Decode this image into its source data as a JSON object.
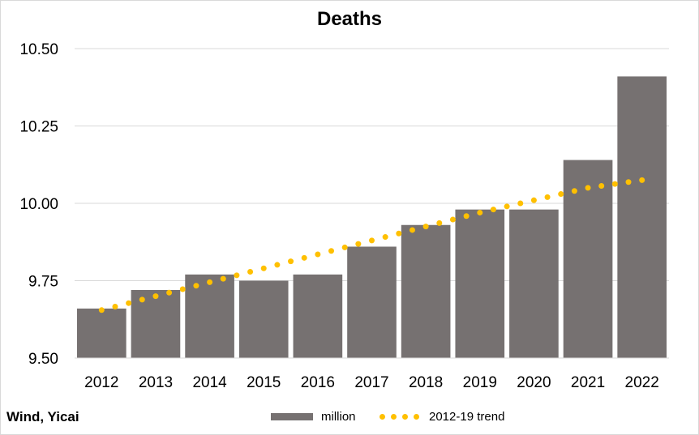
{
  "chart_data": {
    "type": "bar",
    "title": "Deaths",
    "categories": [
      "2012",
      "2013",
      "2014",
      "2015",
      "2016",
      "2017",
      "2018",
      "2019",
      "2020",
      "2021",
      "2022"
    ],
    "series": [
      {
        "name": "million",
        "type": "bar",
        "color": "#767171",
        "values": [
          9.66,
          9.72,
          9.77,
          9.75,
          9.77,
          9.86,
          9.93,
          9.98,
          9.98,
          10.14,
          10.41
        ]
      },
      {
        "name": "2012-19 trend",
        "type": "line",
        "style": "dotted",
        "color": "#ffc000",
        "values": [
          9.655,
          9.7,
          9.745,
          9.79,
          9.835,
          9.88,
          9.925,
          9.97,
          10.01,
          10.05,
          10.075
        ]
      }
    ],
    "ylim": [
      9.5,
      10.5
    ],
    "yticks": [
      "9.50",
      "9.75",
      "10.00",
      "10.25",
      "10.50"
    ],
    "grid": true,
    "legend_position": "bottom"
  },
  "source": "Wind, Yicai"
}
